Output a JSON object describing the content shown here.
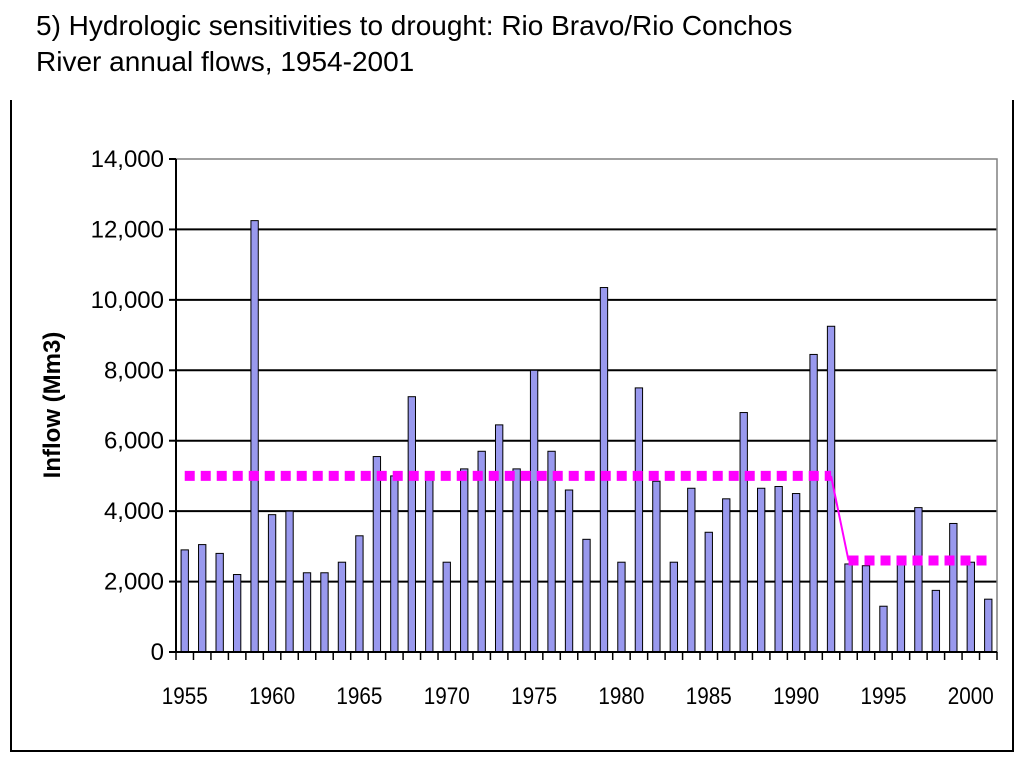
{
  "chart_data": {
    "type": "bar",
    "title_line1": "5)  Hydrologic sensitivities to drought:  Rio Bravo/Rio Conchos",
    "title_line2": "River annual flows, 1954-2001",
    "xlabel": "",
    "ylabel": "Inflow (Mm3)",
    "ylim": [
      0,
      14000
    ],
    "yticks": [
      0,
      2000,
      4000,
      6000,
      8000,
      10000,
      12000,
      14000
    ],
    "ytick_labels": [
      "0",
      "2,000",
      "4,000",
      "6,000",
      "8,000",
      "10,000",
      "12,000",
      "14,000"
    ],
    "xtick_labels": [
      "1955",
      "1960",
      "1965",
      "1970",
      "1975",
      "1980",
      "1985",
      "1990",
      "1995",
      "2000"
    ],
    "grid": true,
    "bar_color": "#9999ee",
    "line_color": "#ff00ff",
    "years": [
      1955,
      1956,
      1957,
      1958,
      1959,
      1960,
      1961,
      1962,
      1963,
      1964,
      1965,
      1966,
      1967,
      1968,
      1969,
      1970,
      1971,
      1972,
      1973,
      1974,
      1975,
      1976,
      1977,
      1978,
      1979,
      1980,
      1981,
      1982,
      1983,
      1984,
      1985,
      1986,
      1987,
      1988,
      1989,
      1990,
      1991,
      1992,
      1993,
      1994,
      1995,
      1996,
      1997,
      1998,
      1999,
      2000,
      2001
    ],
    "values": [
      2900,
      3050,
      2800,
      2200,
      12250,
      3900,
      4000,
      2250,
      2250,
      2550,
      3300,
      5550,
      5000,
      7250,
      5000,
      2550,
      5200,
      5700,
      6450,
      5200,
      8000,
      5700,
      4600,
      3200,
      10350,
      2550,
      7500,
      4850,
      2550,
      4650,
      3400,
      4350,
      6800,
      4650,
      4700,
      4500,
      8450,
      9250,
      2500,
      2450,
      1300,
      2700,
      4100,
      1750,
      3650,
      2550,
      1500
    ],
    "means": [
      {
        "x_start": 1955,
        "x_end": 1992,
        "value": 5000
      },
      {
        "x_start": 1993,
        "x_end": 2001,
        "value": 2600
      }
    ]
  }
}
